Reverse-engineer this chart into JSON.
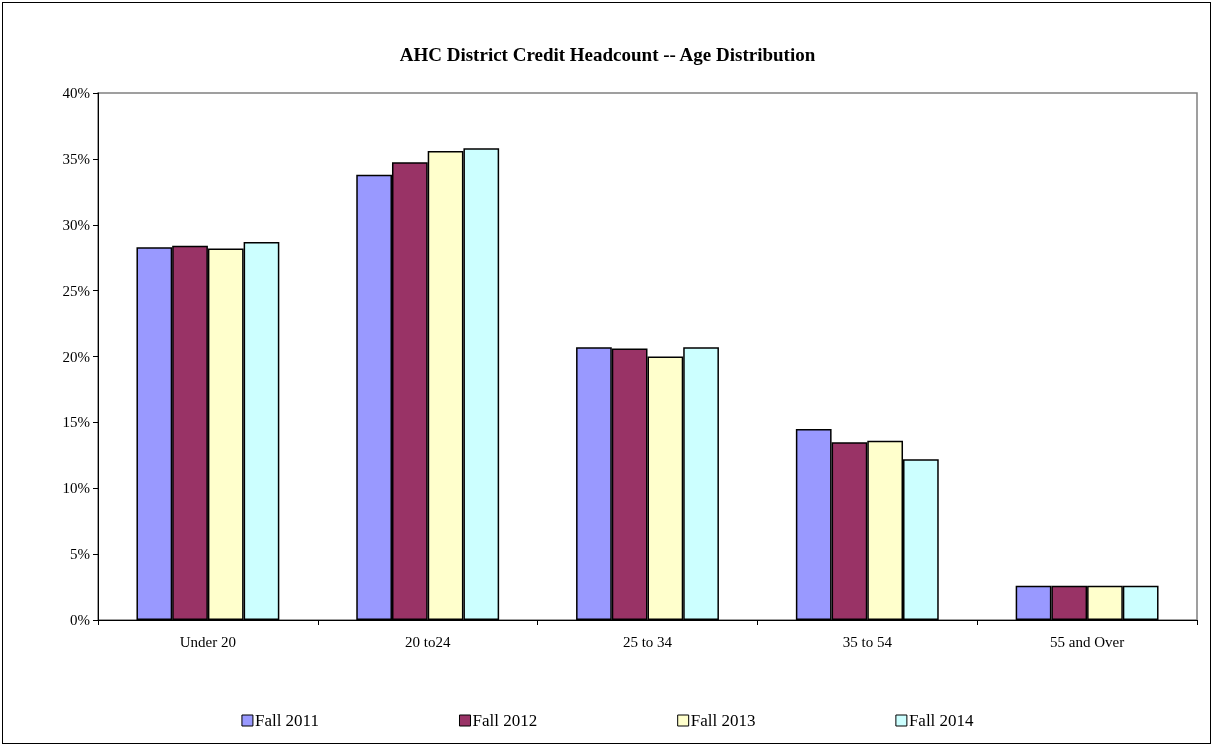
{
  "chart_data": {
    "type": "bar",
    "title": "AHC District Credit Headcount -- Age Distribution",
    "categories": [
      "Under 20",
      "20 to24",
      "25 to 34",
      "35 to 54",
      "55 and Over"
    ],
    "series": [
      {
        "name": "Fall 2011",
        "color": "#9999ff",
        "values": [
          28.3,
          33.8,
          20.7,
          14.5,
          2.6
        ]
      },
      {
        "name": "Fall 2012",
        "color": "#993366",
        "values": [
          28.4,
          34.75,
          20.6,
          13.5,
          2.6
        ]
      },
      {
        "name": "Fall 2013",
        "color": "#ffffcc",
        "values": [
          28.2,
          35.6,
          20.0,
          13.6,
          2.6
        ]
      },
      {
        "name": "Fall 2014",
        "color": "#ccffff",
        "values": [
          28.7,
          35.8,
          20.7,
          12.2,
          2.6
        ]
      }
    ],
    "ylim": [
      0,
      40
    ],
    "yticks": [
      {
        "value": 0,
        "label": "0%"
      },
      {
        "value": 5,
        "label": "5%"
      },
      {
        "value": 10,
        "label": "10%"
      },
      {
        "value": 15,
        "label": "15%"
      },
      {
        "value": 20,
        "label": "20%"
      },
      {
        "value": 25,
        "label": "25%"
      },
      {
        "value": 30,
        "label": "30%"
      },
      {
        "value": 35,
        "label": "35%"
      },
      {
        "value": 40,
        "label": "40%"
      }
    ],
    "grid": false,
    "legend": "bottom"
  }
}
